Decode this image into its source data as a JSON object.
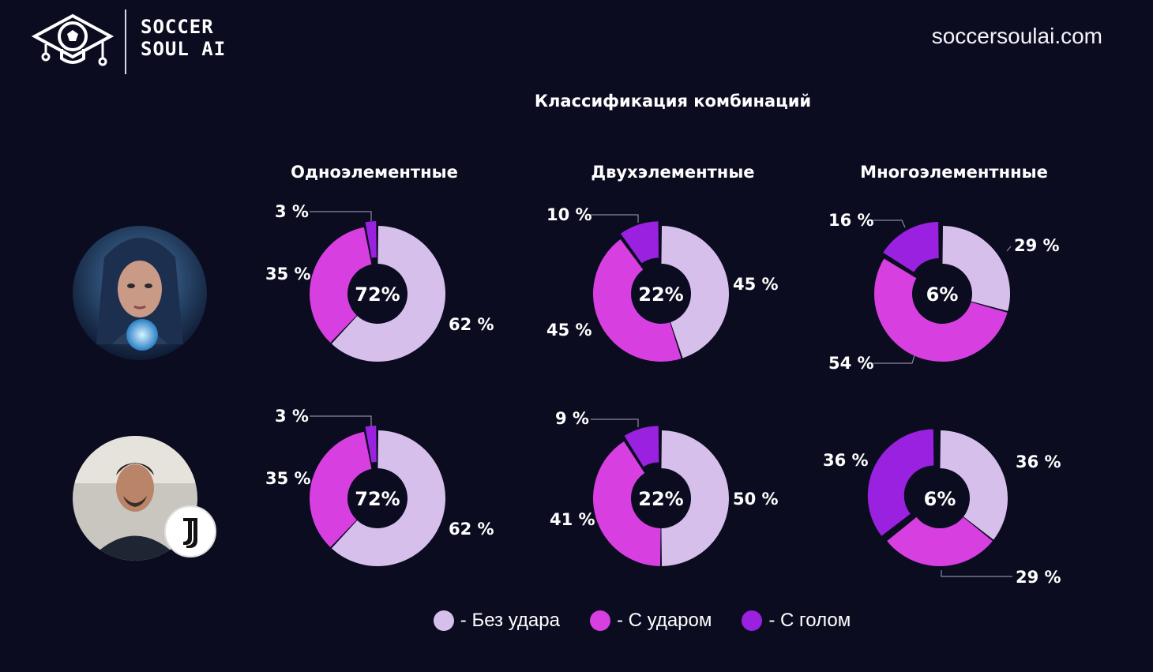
{
  "header": {
    "logo_line1": "SOCCER",
    "logo_line2": "SOUL AI",
    "site_url": "soccersoulai.com"
  },
  "colors": {
    "background": "#0b0c20",
    "no_shot": "#d7bfec",
    "with_shot": "#d73fe0",
    "with_goal": "#9a21e0"
  },
  "icons": {
    "logo": "soccer-ball-graduation-cap-icon",
    "badge": "juventus-logo-icon"
  },
  "chart_data": {
    "type": "pie",
    "title": "Классификация комбинаций",
    "columns": [
      {
        "title": "Одноэлементные"
      },
      {
        "title": "Двухэлементные"
      },
      {
        "title": "Многоэлементнные"
      }
    ],
    "series_names": [
      "- Без удара",
      "- С ударом",
      "- С голом"
    ],
    "rows": [
      {
        "charts": [
          {
            "center": "72%",
            "values": [
              62,
              35,
              3
            ],
            "labels": [
              "62 %",
              "35 %",
              "3 %"
            ]
          },
          {
            "center": "22%",
            "values": [
              45,
              45,
              10
            ],
            "labels": [
              "45 %",
              "45 %",
              "10 %"
            ]
          },
          {
            "center": "6%",
            "values": [
              29,
              54,
              16
            ],
            "labels": [
              "29 %",
              "54 %",
              "16 %"
            ]
          }
        ]
      },
      {
        "charts": [
          {
            "center": "72%",
            "values": [
              62,
              35,
              3
            ],
            "labels": [
              "62 %",
              "35 %",
              "3 %"
            ]
          },
          {
            "center": "22%",
            "values": [
              50,
              41,
              9
            ],
            "labels": [
              "50 %",
              "41 %",
              "9 %"
            ]
          },
          {
            "center": "6%",
            "values": [
              36,
              29,
              36
            ],
            "labels": [
              "36 %",
              "29 %",
              "36 %"
            ]
          }
        ]
      }
    ]
  }
}
